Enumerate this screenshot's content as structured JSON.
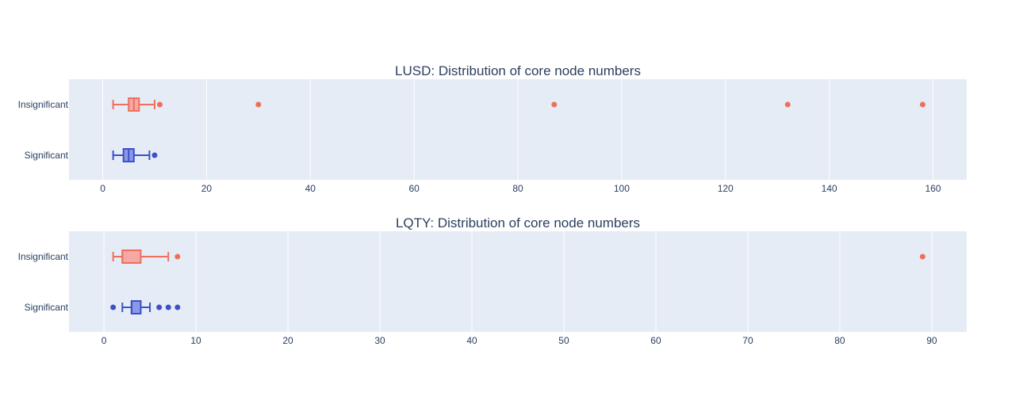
{
  "chart_data": [
    {
      "type": "box",
      "orientation": "horizontal",
      "title": "LUSD: Distribution of core node numbers",
      "xlim": [
        -6.5,
        166.5
      ],
      "x_ticks": [
        0,
        20,
        40,
        60,
        80,
        100,
        120,
        140,
        160
      ],
      "x_tick_labels": [
        "0",
        "20",
        "40",
        "60",
        "80",
        "100",
        "120",
        "140",
        "160"
      ],
      "categories": [
        "Insignificant",
        "Significant"
      ],
      "grid": true,
      "series": [
        {
          "label": "Insignificant",
          "color": "#ef6f5e",
          "fill": "#f4a9a4",
          "whisker_low": 2,
          "q1": 5,
          "median": 6,
          "q3": 7,
          "whisker_high": 10,
          "outliers": [
            11,
            30,
            87,
            132,
            158
          ]
        },
        {
          "label": "Significant",
          "color": "#3c50c8",
          "fill": "#8b98e6",
          "whisker_low": 2,
          "q1": 4,
          "median": 5,
          "q3": 6,
          "whisker_high": 9,
          "outliers": [
            10
          ]
        }
      ]
    },
    {
      "type": "box",
      "orientation": "horizontal",
      "title": "LQTY: Distribution of core node numbers",
      "xlim": [
        -3.8,
        93.8
      ],
      "x_ticks": [
        0,
        10,
        20,
        30,
        40,
        50,
        60,
        70,
        80,
        90
      ],
      "x_tick_labels": [
        "0",
        "10",
        "20",
        "30",
        "40",
        "50",
        "60",
        "70",
        "80",
        "90"
      ],
      "categories": [
        "Insignificant",
        "Significant"
      ],
      "grid": true,
      "series": [
        {
          "label": "Insignificant",
          "color": "#ef6f5e",
          "fill": "#f4a9a4",
          "whisker_low": 1,
          "q1": 2,
          "median": 2,
          "q3": 4,
          "whisker_high": 7,
          "outliers": [
            8,
            89
          ]
        },
        {
          "label": "Significant",
          "color": "#3c50c8",
          "fill": "#8b98e6",
          "whisker_low": 2,
          "q1": 3,
          "median": 3,
          "q3": 4,
          "whisker_high": 5,
          "outliers": [
            1,
            6,
            7,
            8
          ]
        }
      ]
    }
  ]
}
